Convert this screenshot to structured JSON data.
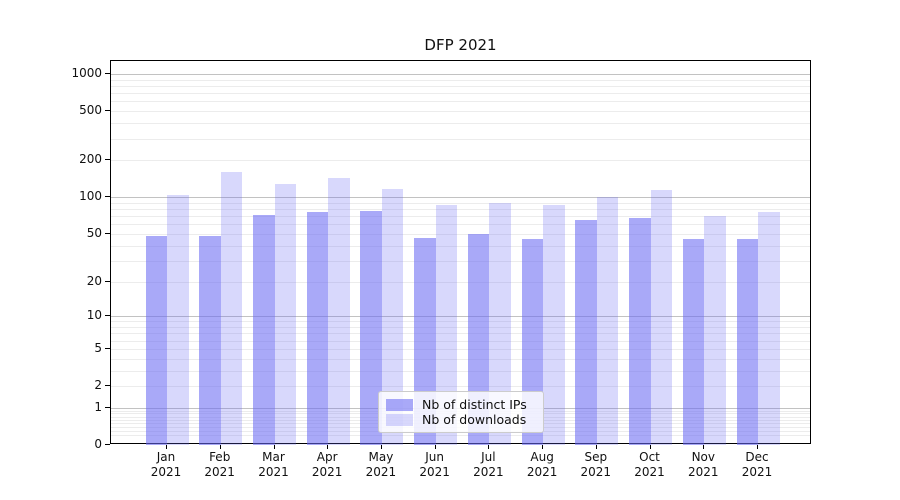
{
  "chart_data": {
    "type": "bar",
    "title": "DFP 2021",
    "categories": [
      "Jan",
      "Feb",
      "Mar",
      "Apr",
      "May",
      "Jun",
      "Jul",
      "Aug",
      "Sep",
      "Oct",
      "Nov",
      "Dec"
    ],
    "category_year": "2021",
    "series": [
      {
        "name": "Nb of distinct IPs",
        "color": "rgba(104,104,243,0.57)",
        "values": [
          48,
          48,
          71,
          75,
          77,
          46,
          50,
          45,
          65,
          67,
          45,
          45
        ]
      },
      {
        "name": "Nb of downloads",
        "color": "rgba(104,104,243,0.26)",
        "values": [
          104,
          161,
          129,
          143,
          117,
          86,
          90,
          86,
          100,
          114,
          70,
          75
        ]
      }
    ],
    "xlabel": "",
    "ylabel": "",
    "yscale": "log1p",
    "ylim": [
      0,
      1272
    ],
    "yticks": [
      0,
      1,
      2,
      5,
      10,
      20,
      50,
      100,
      200,
      500,
      1000
    ],
    "grid": {
      "on": true,
      "major_lines": [
        1,
        10,
        100,
        1000
      ],
      "major_color": "#c2c2c2",
      "minor_color": "#ececec"
    },
    "legend": {
      "position": "lower center inside plot",
      "background": "#ffffff",
      "border": "#cccccc"
    },
    "colors": {
      "background": "#ffffff",
      "axis": "#000000",
      "text": "#111111"
    }
  }
}
